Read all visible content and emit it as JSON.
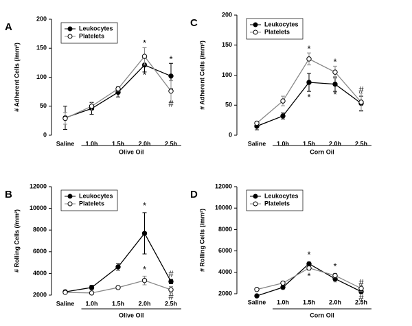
{
  "chart_data": [
    {
      "type": "line",
      "label": "A",
      "ylabel": "# Adherent Cells (/mm²)",
      "group_label": "Olive Oil",
      "categories": [
        "Saline",
        "1.0h",
        "1.5h",
        "2.0h",
        "2.5h"
      ],
      "ylim": [
        0,
        200
      ],
      "yticks": [
        0,
        50,
        100,
        150,
        200
      ],
      "legend": "upper left",
      "series": [
        {
          "name": "Leukocytes",
          "color": "#000000",
          "fill": "#000000",
          "values": [
            30,
            46,
            74,
            121,
            102
          ],
          "errors": [
            20,
            10,
            8,
            12,
            22
          ]
        },
        {
          "name": "Platelets",
          "color": "#888888",
          "fill": "#ffffff",
          "values": [
            29,
            50,
            80,
            136,
            76
          ],
          "errors": [
            10,
            7,
            4,
            15,
            18
          ]
        }
      ],
      "annotations": [
        {
          "text": "*",
          "x": "2.0h",
          "y": 158
        },
        {
          "text": "*",
          "x": "2.0h",
          "y": 103
        },
        {
          "text": "*",
          "x": "2.5h",
          "y": 130
        },
        {
          "text": "#",
          "x": "2.5h",
          "y": 53
        }
      ]
    },
    {
      "type": "line",
      "label": "B",
      "ylabel": "# Rolling Cells (/mm²)",
      "group_label": "Olive Oil",
      "categories": [
        "Saline",
        "1.0h",
        "1.5h",
        "2.0h",
        "2.5h"
      ],
      "ylim": [
        2000,
        12000
      ],
      "yticks": [
        2000,
        4000,
        6000,
        8000,
        10000,
        12000
      ],
      "legend": "upper left",
      "series": [
        {
          "name": "Leukocytes",
          "color": "#000000",
          "fill": "#000000",
          "values": [
            2300,
            2700,
            4600,
            7700,
            3250
          ],
          "errors": [
            150,
            200,
            300,
            1900,
            200
          ]
        },
        {
          "name": "Platelets",
          "color": "#888888",
          "fill": "#ffffff",
          "values": [
            2250,
            2200,
            2700,
            3350,
            2500
          ],
          "errors": [
            100,
            100,
            150,
            400,
            300
          ]
        }
      ],
      "annotations": [
        {
          "text": "*",
          "x": "2.0h",
          "y": 10200
        },
        {
          "text": "*",
          "x": "2.0h",
          "y": 4300
        },
        {
          "text": "#",
          "x": "2.5h",
          "y": 3900
        },
        {
          "text": "#",
          "x": "2.5h",
          "y": 1800
        }
      ]
    },
    {
      "type": "line",
      "label": "C",
      "ylabel": "# Adherent Cells (/mm²)",
      "group_label": "Corn Oil",
      "categories": [
        "Saline",
        "1.0h",
        "1.5h",
        "2.0h",
        "2.5h"
      ],
      "ylim": [
        0,
        200
      ],
      "yticks": [
        0,
        50,
        100,
        150,
        200
      ],
      "legend": "upper left",
      "series": [
        {
          "name": "Leukocytes",
          "color": "#000000",
          "fill": "#000000",
          "values": [
            15,
            32,
            88,
            85,
            53
          ],
          "errors": [
            6,
            5,
            15,
            12,
            12
          ]
        },
        {
          "name": "Platelets",
          "color": "#888888",
          "fill": "#ffffff",
          "values": [
            20,
            57,
            127,
            105,
            55
          ],
          "errors": [
            3,
            8,
            10,
            10,
            15
          ]
        }
      ],
      "annotations": [
        {
          "text": "*",
          "x": "1.5h",
          "y": 143
        },
        {
          "text": "*",
          "x": "1.5h",
          "y": 62
        },
        {
          "text": "*",
          "x": "2.0h",
          "y": 121
        },
        {
          "text": "*",
          "x": "2.0h",
          "y": 67
        },
        {
          "text": "#",
          "x": "2.5h",
          "y": 75
        }
      ]
    },
    {
      "type": "line",
      "label": "D",
      "ylabel": "# Rolling Cells (/mm²)",
      "group_label": "Corn Oil",
      "categories": [
        "Saline",
        "1.0h",
        "1.5h",
        "2.0h",
        "2.5h"
      ],
      "ylim": [
        2000,
        12000
      ],
      "yticks": [
        2000,
        4000,
        6000,
        8000,
        10000,
        12000
      ],
      "legend": "upper left",
      "series": [
        {
          "name": "Leukocytes",
          "color": "#000000",
          "fill": "#000000",
          "values": [
            1800,
            2600,
            4800,
            3400,
            2200
          ],
          "errors": [
            100,
            150,
            150,
            200,
            150
          ]
        },
        {
          "name": "Platelets",
          "color": "#888888",
          "fill": "#ffffff",
          "values": [
            2400,
            3000,
            4400,
            3700,
            2500
          ],
          "errors": [
            100,
            150,
            200,
            200,
            300
          ]
        }
      ],
      "annotations": [
        {
          "text": "*",
          "x": "1.5h",
          "y": 5600
        },
        {
          "text": "*",
          "x": "1.5h",
          "y": 3600
        },
        {
          "text": "*",
          "x": "2.0h",
          "y": 4500
        },
        {
          "text": "*",
          "x": "2.0h",
          "y": 3000
        },
        {
          "text": "#",
          "x": "2.5h",
          "y": 3000
        },
        {
          "text": "#",
          "x": "2.5h",
          "y": 1600
        }
      ]
    }
  ]
}
